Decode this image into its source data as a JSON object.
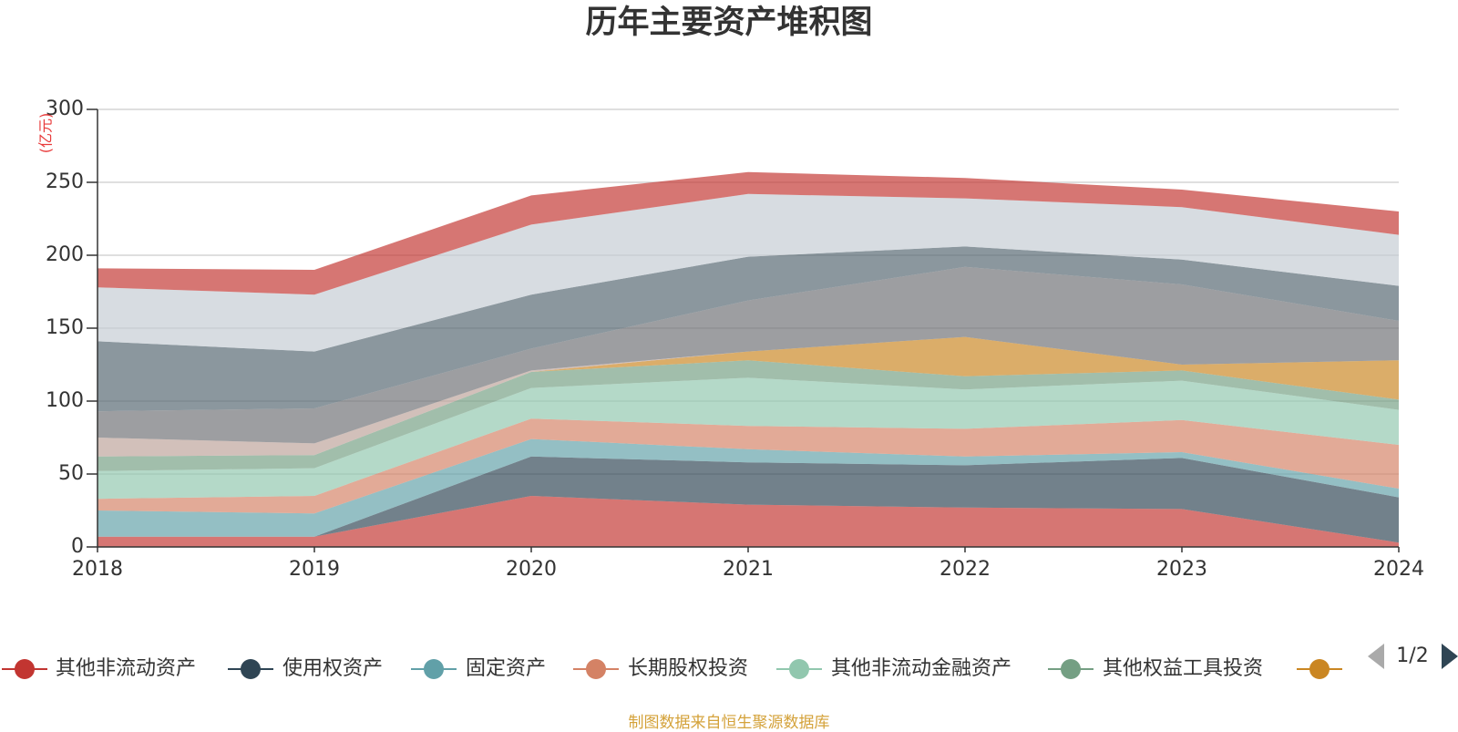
{
  "source": "制图数据来自恒生聚源数据库",
  "chart_data": {
    "type": "area",
    "stacked": true,
    "title": "历年主要资产堆积图",
    "unit": "(亿元)",
    "x": [
      "2018",
      "2019",
      "2020",
      "2021",
      "2022",
      "2023",
      "2024"
    ],
    "ylim": [
      0,
      300
    ],
    "yticks": [
      0,
      50,
      100,
      150,
      200,
      250,
      300
    ],
    "grid": true,
    "legend_position": "bottom",
    "legend_page": "1/2",
    "series": [
      {
        "name": "其他非流动资产",
        "color": "#c23531",
        "values": [
          7,
          7,
          35,
          29,
          27,
          26,
          3
        ]
      },
      {
        "name": "使用权资产",
        "color": "#2f4554",
        "values": [
          0,
          0,
          27,
          29,
          29,
          35,
          31
        ]
      },
      {
        "name": "固定资产",
        "color": "#61a0a8",
        "values": [
          18,
          16,
          12,
          9,
          6,
          4,
          6
        ]
      },
      {
        "name": "长期股权投资",
        "color": "#d48265",
        "values": [
          8,
          12,
          14,
          16,
          19,
          22,
          30
        ]
      },
      {
        "name": "其他非流动金融资产",
        "color": "#91c7ae",
        "values": [
          19,
          19,
          21,
          33,
          27,
          27,
          24
        ]
      },
      {
        "name": "其他权益工具投资",
        "color": "#749f83",
        "values": [
          10,
          9,
          11,
          12,
          9,
          7,
          7
        ]
      },
      {
        "name": "",
        "color": "#ca8622",
        "values": [
          0,
          0,
          0,
          6,
          27,
          4,
          27
        ]
      },
      {
        "name": "",
        "color": "#bda29a",
        "values": [
          13,
          8,
          1,
          0,
          0,
          0,
          0
        ]
      },
      {
        "name": "",
        "color": "#6e7074",
        "values": [
          18,
          24,
          15,
          35,
          48,
          55,
          27
        ]
      },
      {
        "name": "",
        "color": "#546570",
        "values": [
          48,
          39,
          37,
          30,
          14,
          17,
          24
        ]
      },
      {
        "name": "",
        "color": "#c4ccd3",
        "values": [
          37,
          39,
          48,
          43,
          33,
          36,
          35
        ]
      },
      {
        "name": "",
        "color": "#c23531",
        "values": [
          13,
          17,
          20,
          15,
          14,
          12,
          16
        ]
      }
    ]
  }
}
